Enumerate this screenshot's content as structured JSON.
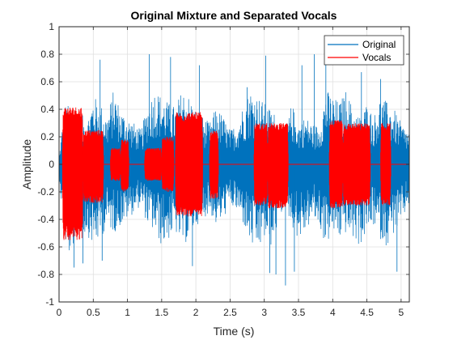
{
  "chart_data": {
    "type": "line",
    "title": "Original Mixture and Separated Vocals",
    "xlabel": "Time (s)",
    "ylabel": "Amplitude",
    "xlim": [
      0,
      5.12
    ],
    "ylim": [
      -1,
      1
    ],
    "xticks": [
      0,
      0.5,
      1,
      1.5,
      2,
      2.5,
      3,
      3.5,
      4,
      4.5,
      5
    ],
    "xtick_labels": [
      "0",
      "0.5",
      "1",
      "1.5",
      "2",
      "2.5",
      "3",
      "3.5",
      "4",
      "4.5",
      "5"
    ],
    "yticks": [
      -1,
      -0.8,
      -0.6,
      -0.4,
      -0.2,
      0,
      0.2,
      0.4,
      0.6,
      0.8,
      1
    ],
    "ytick_labels": [
      "-1",
      "-0.8",
      "-0.6",
      "-0.4",
      "-0.2",
      "0",
      "0.2",
      "0.4",
      "0.6",
      "0.8",
      "1"
    ],
    "grid": true,
    "legend_position": "top-right",
    "series": [
      {
        "name": "Original",
        "color": "#0072BD",
        "envelope": {
          "t": [
            0,
            0.05,
            0.1,
            0.15,
            0.2,
            0.3,
            0.4,
            0.5,
            0.6,
            0.7,
            0.8,
            0.9,
            1.0,
            1.1,
            1.2,
            1.3,
            1.4,
            1.5,
            1.6,
            1.7,
            1.8,
            1.9,
            2.0,
            2.1,
            2.2,
            2.3,
            2.4,
            2.5,
            2.6,
            2.7,
            2.8,
            2.9,
            3.0,
            3.1,
            3.2,
            3.3,
            3.4,
            3.5,
            3.6,
            3.7,
            3.8,
            3.9,
            4.0,
            4.1,
            4.2,
            4.3,
            4.4,
            4.5,
            4.6,
            4.7,
            4.8,
            4.9,
            5.0,
            5.1
          ],
          "top": [
            0.05,
            0.3,
            0.45,
            0.42,
            0.48,
            0.4,
            0.3,
            0.5,
            0.45,
            0.35,
            0.55,
            0.4,
            0.35,
            0.3,
            0.25,
            0.45,
            0.55,
            0.5,
            0.45,
            0.42,
            0.55,
            0.5,
            0.4,
            0.35,
            0.3,
            0.42,
            0.35,
            0.25,
            0.3,
            0.45,
            0.55,
            0.5,
            0.45,
            0.4,
            0.35,
            0.2,
            0.45,
            0.3,
            0.35,
            0.3,
            0.28,
            0.55,
            0.5,
            0.45,
            0.55,
            0.4,
            0.35,
            0.45,
            0.35,
            0.5,
            0.45,
            0.4,
            0.3,
            0.25
          ],
          "bot": [
            -0.05,
            -0.4,
            -0.6,
            -0.68,
            -0.6,
            -0.55,
            -0.5,
            -0.6,
            -0.55,
            -0.45,
            -0.5,
            -0.45,
            -0.4,
            -0.35,
            -0.3,
            -0.45,
            -0.5,
            -0.6,
            -0.55,
            -0.5,
            -0.6,
            -0.55,
            -0.45,
            -0.4,
            -0.35,
            -0.45,
            -0.4,
            -0.3,
            -0.35,
            -0.45,
            -0.6,
            -0.65,
            -0.55,
            -0.6,
            -0.45,
            -0.3,
            -0.45,
            -0.55,
            -0.5,
            -0.4,
            -0.45,
            -0.6,
            -0.5,
            -0.55,
            -0.5,
            -0.55,
            -0.6,
            -0.5,
            -0.45,
            -0.55,
            -0.6,
            -0.5,
            -0.45,
            -0.3
          ]
        },
        "peaks": [
          [
            0.22,
            -0.75
          ],
          [
            0.35,
            -0.72
          ],
          [
            0.6,
            0.76
          ],
          [
            0.63,
            -0.7
          ],
          [
            1.32,
            0.8
          ],
          [
            1.63,
            0.78
          ],
          [
            2.05,
            0.72
          ],
          [
            3.02,
            0.79
          ],
          [
            3.08,
            -0.79
          ],
          [
            3.17,
            -0.8
          ],
          [
            3.31,
            -0.88
          ],
          [
            3.44,
            -0.78
          ],
          [
            3.73,
            0.8
          ],
          [
            3.9,
            0.89
          ],
          [
            4.42,
            0.67
          ],
          [
            1.95,
            -0.74
          ],
          [
            4.94,
            -0.78
          ],
          [
            3.55,
            0.72
          ],
          [
            2.75,
            0.56
          ],
          [
            4.7,
            0.62
          ]
        ]
      },
      {
        "name": "Vocals",
        "color": "#FF0000",
        "segments": [
          {
            "start": 0.05,
            "end": 0.35,
            "amp": 0.42,
            "neg": 0.55
          },
          {
            "start": 0.35,
            "end": 0.65,
            "amp": 0.25,
            "neg": 0.28
          },
          {
            "start": 0.75,
            "end": 0.9,
            "amp": 0.12,
            "neg": 0.12
          },
          {
            "start": 0.9,
            "end": 1.02,
            "amp": 0.18,
            "neg": 0.2
          },
          {
            "start": 1.25,
            "end": 1.5,
            "amp": 0.12,
            "neg": 0.12
          },
          {
            "start": 1.5,
            "end": 1.68,
            "amp": 0.2,
            "neg": 0.2
          },
          {
            "start": 1.7,
            "end": 2.1,
            "amp": 0.38,
            "neg": 0.38
          },
          {
            "start": 2.2,
            "end": 2.33,
            "amp": 0.25,
            "neg": 0.25
          },
          {
            "start": 2.85,
            "end": 3.05,
            "amp": 0.3,
            "neg": 0.3
          },
          {
            "start": 3.05,
            "end": 3.35,
            "amp": 0.3,
            "neg": 0.32
          },
          {
            "start": 3.95,
            "end": 4.15,
            "amp": 0.32,
            "neg": 0.32
          },
          {
            "start": 4.15,
            "end": 4.55,
            "amp": 0.3,
            "neg": 0.3
          },
          {
            "start": 4.7,
            "end": 4.85,
            "amp": 0.3,
            "neg": 0.3
          }
        ]
      }
    ]
  }
}
